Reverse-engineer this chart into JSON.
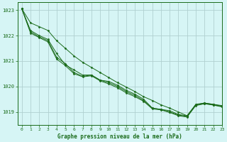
{
  "title": "Graphe pression niveau de la mer (hPa)",
  "background_color": "#d6f5f5",
  "grid_color": "#b0d0d0",
  "line_color": "#1a6b1a",
  "xlim": [
    -0.5,
    23
  ],
  "ylim": [
    1018.5,
    1023.3
  ],
  "yticks": [
    1019,
    1020,
    1021,
    1022,
    1023
  ],
  "xticks": [
    0,
    1,
    2,
    3,
    4,
    5,
    6,
    7,
    8,
    9,
    10,
    11,
    12,
    13,
    14,
    15,
    16,
    17,
    18,
    19,
    20,
    21,
    22,
    23
  ],
  "series": [
    [
      1023.05,
      1022.2,
      1022.0,
      1021.85,
      1021.3,
      1020.85,
      1020.65,
      1020.45,
      1020.45,
      1020.25,
      1020.2,
      1020.05,
      1019.85,
      1019.7,
      1019.5,
      1019.15,
      1019.1,
      1019.05,
      1018.9,
      1018.85,
      1019.3,
      1019.35,
      1019.3,
      1019.25
    ],
    [
      1023.05,
      1022.15,
      1021.95,
      1021.8,
      1021.15,
      1020.9,
      1020.55,
      1020.4,
      1020.45,
      1020.25,
      1020.15,
      1020.0,
      1019.8,
      1019.65,
      1019.45,
      1019.15,
      1019.1,
      1019.0,
      1018.88,
      1018.82,
      1019.28,
      1019.33,
      1019.28,
      1019.22
    ],
    [
      1023.05,
      1022.1,
      1021.92,
      1021.75,
      1021.08,
      1020.82,
      1020.5,
      1020.38,
      1020.42,
      1020.22,
      1020.1,
      1019.95,
      1019.75,
      1019.6,
      1019.42,
      1019.12,
      1019.08,
      1018.98,
      1018.85,
      1018.8,
      1019.25,
      1019.32,
      1019.27,
      1019.2
    ],
    [
      1023.05,
      1022.5,
      1022.35,
      1022.2,
      1021.8,
      1021.5,
      1021.2,
      1020.95,
      1020.75,
      1020.55,
      1020.35,
      1020.15,
      1019.98,
      1019.8,
      1019.6,
      1019.45,
      1019.28,
      1019.15,
      1019.0,
      1018.85,
      1019.28,
      1019.35,
      1019.3,
      1019.22
    ]
  ]
}
